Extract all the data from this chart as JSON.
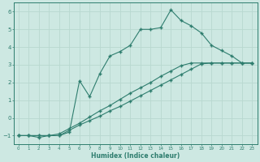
{
  "xlabel": "Humidex (Indice chaleur)",
  "ylabel": "",
  "bg_color": "#cde8e2",
  "grid_color": "#b8d8d0",
  "line_color": "#2e7d6e",
  "xlim": [
    -0.5,
    23.5
  ],
  "ylim": [
    -1.5,
    6.5
  ],
  "yticks": [
    -1,
    0,
    1,
    2,
    3,
    4,
    5,
    6
  ],
  "xticks": [
    0,
    1,
    2,
    3,
    4,
    5,
    6,
    7,
    8,
    9,
    10,
    11,
    12,
    13,
    14,
    15,
    16,
    17,
    18,
    19,
    20,
    21,
    22,
    23
  ],
  "line1_x": [
    0,
    1,
    2,
    3,
    4,
    5,
    6,
    7,
    8,
    9,
    10,
    11,
    12,
    13,
    14,
    15,
    16,
    17,
    18,
    19,
    20,
    21,
    22,
    23
  ],
  "line1_y": [
    -1,
    -1,
    -1.1,
    -1,
    -1,
    -0.8,
    2.1,
    1.2,
    2.5,
    3.5,
    3.75,
    4.1,
    5.0,
    5.0,
    5.1,
    6.1,
    5.5,
    5.2,
    4.8,
    4.1,
    3.8,
    3.5,
    3.1,
    3.1
  ],
  "line2_x": [
    0,
    1,
    2,
    3,
    4,
    5,
    6,
    7,
    8,
    9,
    10,
    11,
    12,
    13,
    14,
    15,
    16,
    17,
    18,
    19,
    20,
    21,
    22,
    23
  ],
  "line2_y": [
    -1,
    -1,
    -1,
    -1,
    -1,
    -0.7,
    -0.4,
    -0.15,
    0.1,
    0.4,
    0.65,
    0.95,
    1.25,
    1.55,
    1.85,
    2.15,
    2.45,
    2.75,
    3.05,
    3.1,
    3.1,
    3.1,
    3.1,
    3.1
  ],
  "line3_x": [
    0,
    1,
    2,
    3,
    4,
    5,
    6,
    7,
    8,
    9,
    10,
    11,
    12,
    13,
    14,
    15,
    16,
    17,
    18,
    19,
    20,
    21,
    22,
    23
  ],
  "line3_y": [
    -1,
    -1,
    -1,
    -1,
    -0.9,
    -0.6,
    -0.3,
    0.05,
    0.4,
    0.7,
    1.05,
    1.4,
    1.7,
    2.0,
    2.35,
    2.65,
    2.95,
    3.1,
    3.1,
    3.1,
    3.1,
    3.1,
    3.1,
    3.1
  ]
}
